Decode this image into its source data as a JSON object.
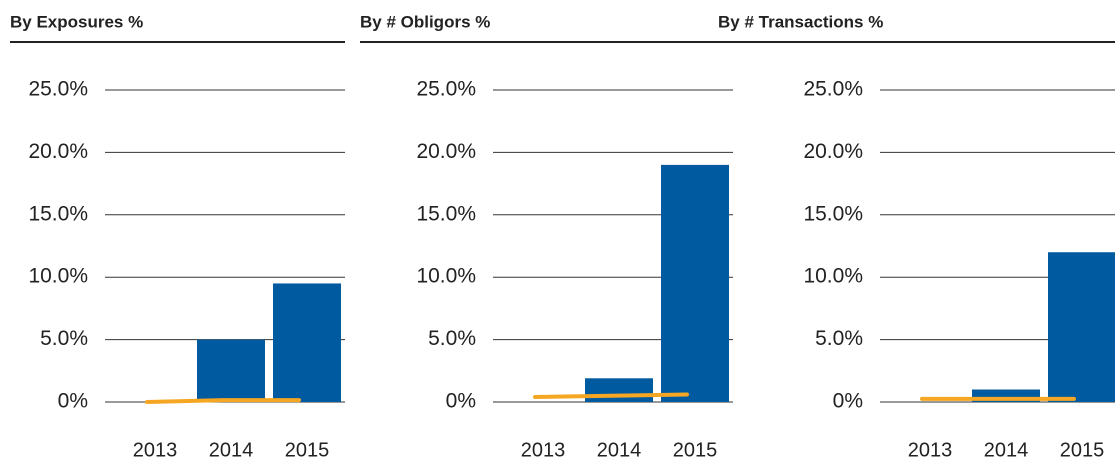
{
  "chart_data": [
    {
      "type": "bar",
      "title": "By Exposures %",
      "categories": [
        "2013",
        "2014",
        "2015"
      ],
      "series": [
        {
          "type": "bar",
          "color": "#005aa0",
          "values": [
            0,
            5.0,
            9.5
          ]
        },
        {
          "type": "line",
          "color": "#f5a623",
          "values": [
            0,
            0.15,
            0.15
          ]
        }
      ],
      "ylim": [
        0,
        25
      ],
      "yticks": [
        {
          "value": 0,
          "label": "0%"
        },
        {
          "value": 5,
          "label": "5.0%"
        },
        {
          "value": 10,
          "label": "10.0%"
        },
        {
          "value": 15,
          "label": "15.0%"
        },
        {
          "value": 20,
          "label": "20.0%"
        },
        {
          "value": 25,
          "label": "25.0%"
        }
      ],
      "grid": true
    },
    {
      "type": "bar",
      "title": "By # Obligors %",
      "categories": [
        "2013",
        "2014",
        "2015"
      ],
      "series": [
        {
          "type": "bar",
          "color": "#005aa0",
          "values": [
            0,
            1.9,
            19.0
          ]
        },
        {
          "type": "line",
          "color": "#f5a623",
          "values": [
            0.4,
            0.5,
            0.6
          ]
        }
      ],
      "ylim": [
        0,
        25
      ],
      "yticks": [
        {
          "value": 0,
          "label": "0%"
        },
        {
          "value": 5,
          "label": "5.0%"
        },
        {
          "value": 10,
          "label": "10.0%"
        },
        {
          "value": 15,
          "label": "15.0%"
        },
        {
          "value": 20,
          "label": "20.0%"
        },
        {
          "value": 25,
          "label": "25.0%"
        }
      ],
      "grid": true
    },
    {
      "type": "bar",
      "title": "By # Transactions %",
      "categories": [
        "2013",
        "2014",
        "2015"
      ],
      "series": [
        {
          "type": "bar",
          "color": "#005aa0",
          "values": [
            0,
            1.0,
            12.0
          ]
        },
        {
          "type": "line",
          "color": "#f5a623",
          "values": [
            0.25,
            0.25,
            0.25
          ]
        }
      ],
      "ylim": [
        0,
        25
      ],
      "yticks": [
        {
          "value": 0,
          "label": "0%"
        },
        {
          "value": 5,
          "label": "5.0%"
        },
        {
          "value": 10,
          "label": "10.0%"
        },
        {
          "value": 15,
          "label": "15.0%"
        },
        {
          "value": 20,
          "label": "20.0%"
        },
        {
          "value": 25,
          "label": "25.0%"
        }
      ],
      "grid": true
    }
  ]
}
